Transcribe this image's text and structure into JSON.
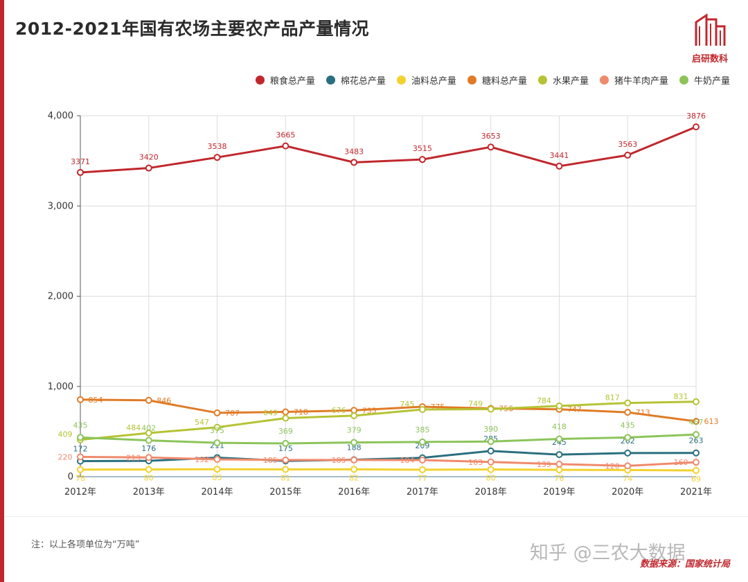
{
  "title": "2012-2021年国有农场主要农产品产量情况",
  "logo_text": "启研数科",
  "note": "注：以上各项单位为“万吨”",
  "watermark": "知乎 @三农大数据",
  "source": "数据来源：国家统计局",
  "chart_data": {
    "type": "line",
    "title": "2012-2021年国有农场主要农产品产量情况",
    "categories": [
      "2012年",
      "2013年",
      "2014年",
      "2015年",
      "2016年",
      "2017年",
      "2018年",
      "2019年",
      "2020年",
      "2021年"
    ],
    "ylim": [
      0,
      4000
    ],
    "yticks": [
      0,
      1000,
      2000,
      3000,
      4000
    ],
    "ytick_labels": [
      "0",
      "1,000",
      "2,000",
      "3,000",
      "4,000"
    ],
    "grid": true,
    "legend_position": "top-right",
    "series": [
      {
        "name": "粮食总产量",
        "color": "#c0272d",
        "values": [
          3371,
          3420,
          3538,
          3665,
          3483,
          3515,
          3653,
          3441,
          3563,
          3876
        ]
      },
      {
        "name": "棉花总产量",
        "color": "#2a6f7f",
        "values": [
          172,
          176,
          211,
          175,
          188,
          209,
          285,
          245,
          262,
          263
        ]
      },
      {
        "name": "油料总产量",
        "color": "#f2d22e",
        "values": [
          78,
          80,
          83,
          81,
          82,
          77,
          80,
          76,
          74,
          69
        ]
      },
      {
        "name": "糖料总产量",
        "color": "#e07b26",
        "values": [
          854,
          846,
          707,
          718,
          735,
          775,
          756,
          747,
          713,
          613
        ]
      },
      {
        "name": "水果产量",
        "color": "#b5c334",
        "values": [
          409,
          484,
          547,
          649,
          676,
          745,
          749,
          784,
          817,
          831
        ]
      },
      {
        "name": "猪牛羊肉产量",
        "color": "#f08a6c",
        "values": [
          220,
          213,
          192,
          185,
          185,
          184,
          163,
          139,
          120,
          160
        ]
      },
      {
        "name": "牛奶产量",
        "color": "#8cc45a",
        "values": [
          435,
          402,
          375,
          369,
          379,
          385,
          390,
          418,
          435,
          467
        ]
      }
    ]
  }
}
